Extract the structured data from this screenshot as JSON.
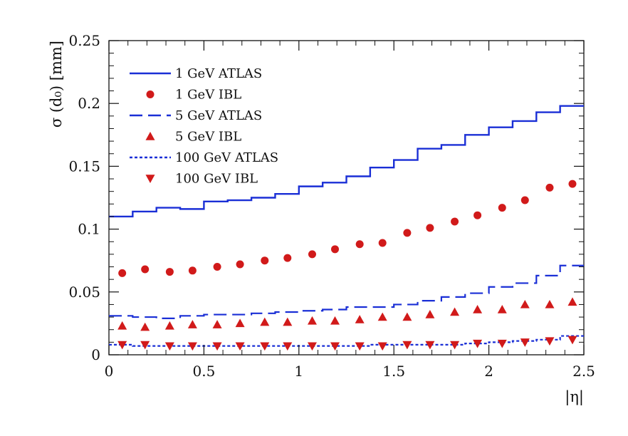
{
  "chart_data": {
    "type": "line",
    "xlabel": "|η|",
    "ylabel": "σ (d₀) [mm]",
    "xlim": [
      0,
      2.5
    ],
    "ylim": [
      0,
      0.25
    ],
    "x_ticks": [
      "0",
      "0.5",
      "1",
      "1.5",
      "2",
      "2.5"
    ],
    "y_ticks": [
      "0",
      "0.05",
      "0.1",
      "0.15",
      "0.2",
      "0.25"
    ],
    "grid": false,
    "legend_position": "top-left",
    "series": [
      {
        "name": "1 GeV ATLAS",
        "style": "step-solid",
        "color": "#1a2fd6",
        "bin_edges": [
          0,
          0.125,
          0.25,
          0.375,
          0.5,
          0.625,
          0.75,
          0.875,
          1.0,
          1.125,
          1.25,
          1.375,
          1.5,
          1.625,
          1.75,
          1.875,
          2.0,
          2.125,
          2.25,
          2.375,
          2.5
        ],
        "values": [
          0.11,
          0.114,
          0.117,
          0.116,
          0.122,
          0.123,
          0.125,
          0.128,
          0.134,
          0.137,
          0.142,
          0.149,
          0.155,
          0.164,
          0.167,
          0.175,
          0.181,
          0.186,
          0.193,
          0.198
        ]
      },
      {
        "name": "1 GeV IBL",
        "style": "marker-circle",
        "color": "#d11a1a",
        "x": [
          0.07,
          0.19,
          0.32,
          0.44,
          0.57,
          0.69,
          0.82,
          0.94,
          1.07,
          1.19,
          1.32,
          1.44,
          1.57,
          1.69,
          1.82,
          1.94,
          2.07,
          2.19,
          2.32,
          2.44
        ],
        "values": [
          0.065,
          0.068,
          0.066,
          0.067,
          0.07,
          0.072,
          0.075,
          0.077,
          0.08,
          0.084,
          0.088,
          0.089,
          0.097,
          0.101,
          0.106,
          0.111,
          0.117,
          0.123,
          0.133,
          0.136
        ]
      },
      {
        "name": "5 GeV ATLAS",
        "style": "step-dashed",
        "color": "#1a2fd6",
        "bin_edges": [
          0,
          0.125,
          0.25,
          0.375,
          0.5,
          0.625,
          0.75,
          0.875,
          1.0,
          1.125,
          1.25,
          1.375,
          1.5,
          1.625,
          1.75,
          1.875,
          2.0,
          2.125,
          2.25,
          2.375,
          2.5
        ],
        "values": [
          0.031,
          0.03,
          0.029,
          0.031,
          0.032,
          0.032,
          0.033,
          0.034,
          0.035,
          0.036,
          0.038,
          0.038,
          0.04,
          0.043,
          0.046,
          0.049,
          0.054,
          0.057,
          0.063,
          0.071
        ]
      },
      {
        "name": "5 GeV IBL",
        "style": "marker-triangle-up",
        "color": "#d11a1a",
        "x": [
          0.07,
          0.19,
          0.32,
          0.44,
          0.57,
          0.69,
          0.82,
          0.94,
          1.07,
          1.19,
          1.32,
          1.44,
          1.57,
          1.69,
          1.82,
          1.94,
          2.07,
          2.19,
          2.32,
          2.44
        ],
        "values": [
          0.023,
          0.022,
          0.023,
          0.024,
          0.024,
          0.025,
          0.026,
          0.026,
          0.027,
          0.027,
          0.028,
          0.03,
          0.03,
          0.032,
          0.034,
          0.036,
          0.036,
          0.04,
          0.04,
          0.042
        ]
      },
      {
        "name": "100 GeV ATLAS",
        "style": "step-dotted",
        "color": "#1a2fd6",
        "bin_edges": [
          0,
          0.125,
          0.25,
          0.375,
          0.5,
          0.625,
          0.75,
          0.875,
          1.0,
          1.125,
          1.25,
          1.375,
          1.5,
          1.625,
          1.75,
          1.875,
          2.0,
          2.125,
          2.25,
          2.375,
          2.5
        ],
        "values": [
          0.008,
          0.007,
          0.007,
          0.007,
          0.007,
          0.007,
          0.007,
          0.007,
          0.007,
          0.007,
          0.007,
          0.008,
          0.008,
          0.008,
          0.008,
          0.009,
          0.01,
          0.011,
          0.012,
          0.015
        ]
      },
      {
        "name": "100 GeV IBL",
        "style": "marker-triangle-down",
        "color": "#d11a1a",
        "x": [
          0.07,
          0.19,
          0.32,
          0.44,
          0.57,
          0.69,
          0.82,
          0.94,
          1.07,
          1.19,
          1.32,
          1.44,
          1.57,
          1.69,
          1.82,
          1.94,
          2.07,
          2.19,
          2.32,
          2.44
        ],
        "values": [
          0.008,
          0.008,
          0.007,
          0.007,
          0.007,
          0.007,
          0.007,
          0.007,
          0.007,
          0.007,
          0.007,
          0.007,
          0.008,
          0.008,
          0.008,
          0.009,
          0.009,
          0.01,
          0.011,
          0.012
        ]
      }
    ]
  }
}
